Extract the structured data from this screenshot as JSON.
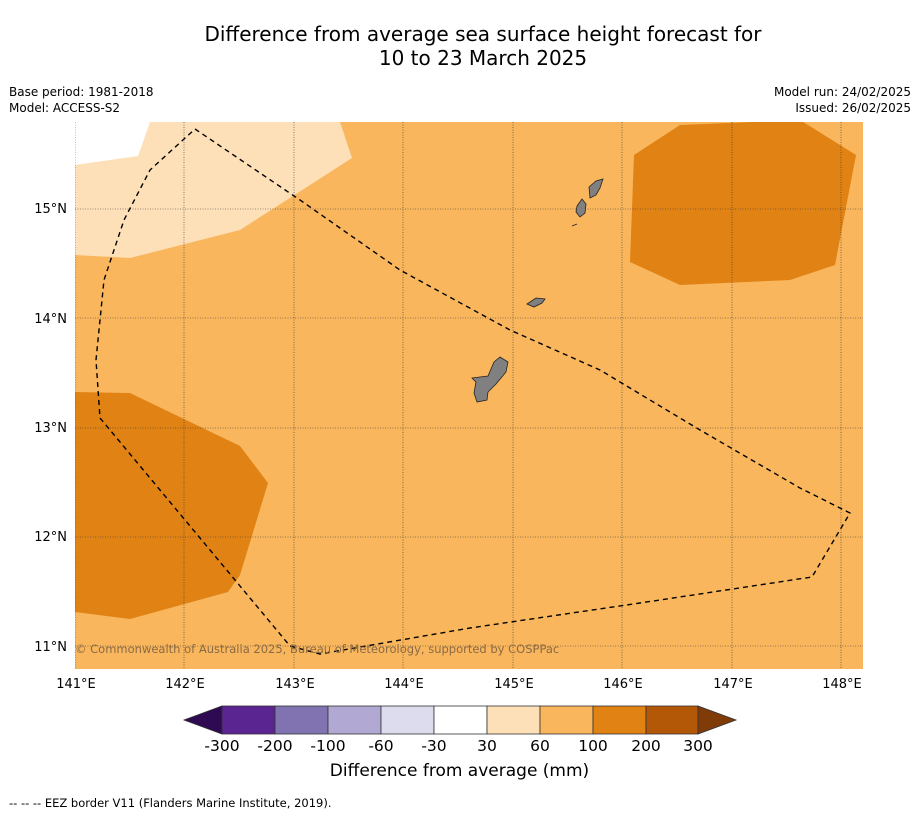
{
  "title_line1": "Difference from average sea surface height forecast for",
  "title_line2": "10 to 23 March 2025",
  "base_period": "Base period: 1981-2018",
  "model": "Model: ACCESS-S2",
  "model_run": "Model run: 24/02/2025",
  "issued": "Issued: 26/02/2025",
  "copyright": "© Commonwealth of Australia 2025, Bureau of Meteorology, supported by COSPPac",
  "lat_labels": [
    "15°N",
    "14°N",
    "13°N",
    "12°N",
    "11°N"
  ],
  "lon_labels": [
    "141°E",
    "142°E",
    "143°E",
    "144°E",
    "145°E",
    "146°E",
    "147°E",
    "148°E"
  ],
  "colorbar": {
    "ticks": [
      "-300",
      "-200",
      "-100",
      "-60",
      "-30",
      "30",
      "60",
      "100",
      "200",
      "300"
    ],
    "colors": [
      "#2d0a52",
      "#5a2590",
      "#8173b1",
      "#b1a8d3",
      "#dcdcee",
      "#ffffff",
      "#fde0b8",
      "#f9b65d",
      "#e08214",
      "#b35806",
      "#7f3b08"
    ],
    "label": "Difference from average (mm)"
  },
  "colors": {
    "land": "#808080",
    "background_anomaly": "#f9b65d",
    "low_anomaly": "#fde0b8",
    "high_anomaly": "#e08214"
  },
  "footnote": "--  --  -- EEZ border V11 (Flanders Marine Institute, 2019)."
}
